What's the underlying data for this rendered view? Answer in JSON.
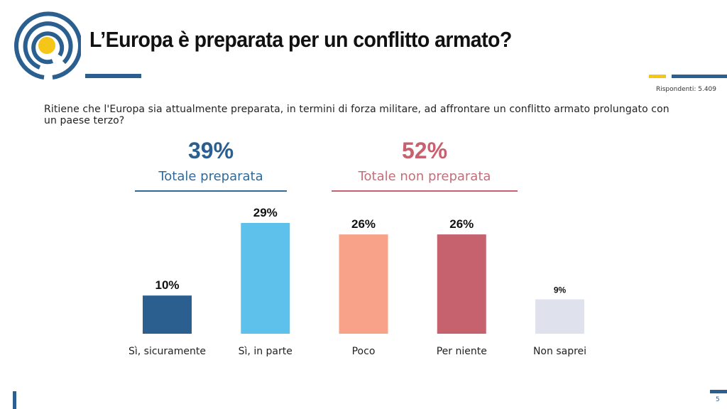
{
  "header": {
    "title": "L’Europa è preparata per un conflitto armato?",
    "logo_icon": "concentric-circles-logo-icon",
    "respondents": "Rispondenti: 5.409"
  },
  "question": "Ritiene che l'Europa sia attualmente preparata, in termini di forza militare, ad affrontare un conflitto armato prolungato con un paese terzo?",
  "summary": {
    "prepared": {
      "pct": "39%",
      "label": "Totale preparata",
      "color": "#2a5f8f"
    },
    "not_prepared": {
      "pct": "52%",
      "label": "Totale non preparata",
      "color": "#c9606d"
    }
  },
  "footer": {
    "page_number": "5"
  },
  "colors": {
    "brand_blue": "#2a5f8f",
    "brand_yellow": "#f5c518"
  },
  "chart_data": {
    "type": "bar",
    "title": "",
    "xlabel": "",
    "ylabel": "",
    "ylim": [
      0,
      29
    ],
    "grid": false,
    "categories": [
      "Sì, sicuramente",
      "Sì, in parte",
      "Poco",
      "Per niente",
      "Non saprei"
    ],
    "values": [
      10,
      29,
      26,
      26,
      9
    ],
    "value_labels": [
      "10%",
      "29%",
      "26%",
      "26%",
      "9%"
    ],
    "colors": [
      "#2a5f8f",
      "#5ec1eb",
      "#f9a28a",
      "#c6626e",
      "#dfe1ec"
    ],
    "groups": [
      {
        "label": "Totale preparata",
        "value": 39,
        "categories": [
          "Sì, sicuramente",
          "Sì, in parte"
        ]
      },
      {
        "label": "Totale non preparata",
        "value": 52,
        "categories": [
          "Poco",
          "Per niente"
        ]
      }
    ]
  }
}
